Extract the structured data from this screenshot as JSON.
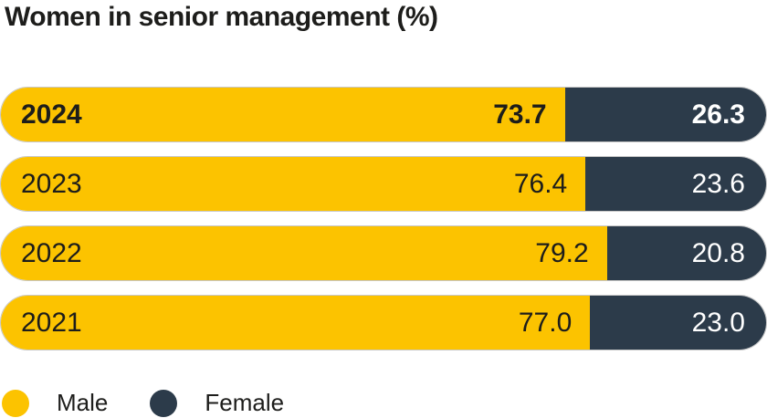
{
  "title": "Women in senior management (%)",
  "colors": {
    "male": "#FCC300",
    "female": "#2C3B4A",
    "text_dark": "#1D1D1B",
    "text_light_on_dark": "#FFFFFF",
    "background": "#FFFFFF"
  },
  "legend": {
    "items": [
      {
        "label": "Male",
        "color": "#FCC300"
      },
      {
        "label": "Female",
        "color": "#2C3B4A"
      }
    ]
  },
  "chart_data": {
    "type": "bar",
    "orientation": "horizontal",
    "stacked": true,
    "title": "Women in senior management (%)",
    "categories": [
      "2024",
      "2023",
      "2022",
      "2021"
    ],
    "series": [
      {
        "name": "Male",
        "values": [
          73.7,
          76.4,
          79.2,
          77.0
        ]
      },
      {
        "name": "Female",
        "values": [
          26.3,
          23.6,
          20.8,
          23.0
        ]
      }
    ],
    "value_labels": [
      [
        "73.7",
        "26.3"
      ],
      [
        "76.4",
        "23.6"
      ],
      [
        "79.2",
        "20.8"
      ],
      [
        "77.0",
        "23.0"
      ]
    ],
    "xlim": [
      0,
      100
    ],
    "grid": false,
    "legend_position": "bottom",
    "highlighted_category": "2024"
  }
}
